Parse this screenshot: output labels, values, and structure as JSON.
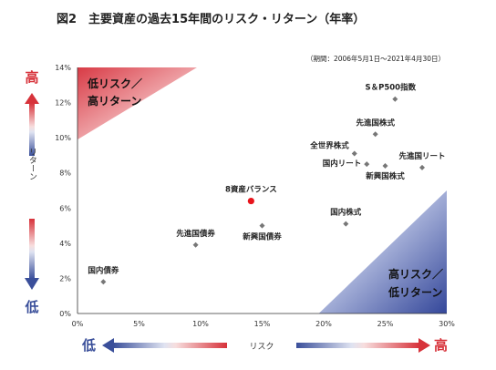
{
  "header": {
    "title": "図2　主要資産の過去15年間のリスク・リターン（年率）",
    "period": "（期間：2006年5月1日〜2021年4月30日）"
  },
  "colors": {
    "high_red": "#d7323a",
    "low_blue": "#3a4f9a",
    "marker_gray": "#777777",
    "highlight_red": "#e8141c",
    "axis": "#333333"
  },
  "chart_data": {
    "type": "scatter",
    "xlabel": "リスク",
    "ylabel": "リターン",
    "xlim": [
      0,
      30
    ],
    "ylim": [
      0,
      14
    ],
    "x_ticks": [
      "0%",
      "5%",
      "10%",
      "15%",
      "20%",
      "25%",
      "30%"
    ],
    "y_ticks": [
      "0%",
      "2%",
      "4%",
      "6%",
      "8%",
      "10%",
      "12%",
      "14%"
    ],
    "x_axis_low": "低",
    "x_axis_high": "高",
    "y_axis_low": "低",
    "y_axis_high": "高",
    "corner_top_left": [
      "低リスク／",
      "高リターン"
    ],
    "corner_bottom_right": [
      "高リスク／",
      "低リターン"
    ],
    "grid": false,
    "points": [
      {
        "label": "S＆P500指数",
        "x": 25.8,
        "y": 12.2,
        "highlight": false
      },
      {
        "label": "先進国株式",
        "x": 24.2,
        "y": 10.2,
        "highlight": false
      },
      {
        "label": "全世界株式",
        "x": 22.5,
        "y": 9.1,
        "highlight": false
      },
      {
        "label": "国内リート",
        "x": 23.5,
        "y": 8.5,
        "highlight": false
      },
      {
        "label": "新興国株式",
        "x": 25.0,
        "y": 8.4,
        "highlight": false
      },
      {
        "label": "先進国リート",
        "x": 28.0,
        "y": 8.3,
        "highlight": false
      },
      {
        "label": "8資産バランス",
        "x": 14.1,
        "y": 6.4,
        "highlight": true
      },
      {
        "label": "新興国債券",
        "x": 15.0,
        "y": 5.0,
        "highlight": false
      },
      {
        "label": "国内株式",
        "x": 21.8,
        "y": 5.1,
        "highlight": false
      },
      {
        "label": "先進国債券",
        "x": 9.6,
        "y": 3.9,
        "highlight": false
      },
      {
        "label": "国内債券",
        "x": 2.1,
        "y": 1.8,
        "highlight": false
      }
    ]
  }
}
